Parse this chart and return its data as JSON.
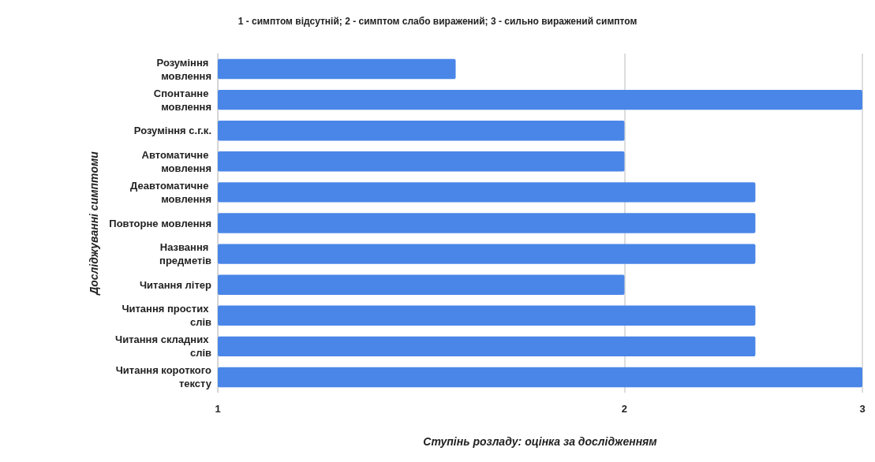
{
  "chart_data": {
    "type": "bar",
    "orientation": "horizontal",
    "subtitle": "1 - симптом відсутній; 2 - симптом слабо виражений; 3 - сильно виражений симптом",
    "xlabel": "Ступінь розладу: оцінка за дослідженням",
    "ylabel": "Досліджуванні симптоми",
    "categories": [
      "Розуміння мовлення",
      "Спонтанне мовлення",
      "Розуміння с.г.к.",
      "Автоматичне мовлення",
      "Деавтоматичне мовлення",
      "Повторне мовлення",
      "Названня предметів",
      "Читання літер",
      "Читання простих слів",
      "Читання складних слів",
      "Читання короткого тексту"
    ],
    "values": [
      1.5,
      3,
      2,
      2,
      2.5,
      2.5,
      2.5,
      2,
      2.5,
      2.5,
      3
    ],
    "color": "#4a86e8",
    "xlim": [
      1,
      3
    ],
    "xticks": [
      1,
      2,
      3
    ],
    "log": "x",
    "grid": "x"
  }
}
